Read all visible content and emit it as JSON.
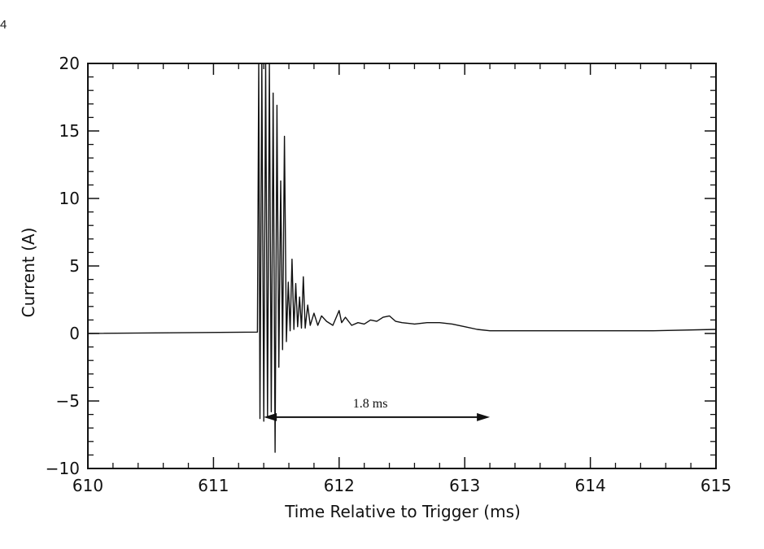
{
  "page_corner_text": "4",
  "chart_data": {
    "type": "line",
    "title": "",
    "xlabel": "Time Relative to Trigger (ms)",
    "ylabel": "Current (A)",
    "xlim": [
      610,
      615
    ],
    "ylim": [
      -10,
      20
    ],
    "xticks": [
      610,
      611,
      612,
      613,
      614,
      615
    ],
    "yticks": [
      -10,
      -5,
      0,
      5,
      10,
      15,
      20
    ],
    "x_minor_step": 0.2,
    "y_minor_step": 1,
    "grid": false,
    "legend": "none",
    "series": [
      {
        "x": [
          610.0,
          611.35,
          611.36,
          611.37,
          611.385,
          611.4,
          611.415,
          611.43,
          611.445,
          611.46,
          611.475,
          611.49,
          611.505,
          611.52,
          611.535,
          611.55,
          611.565,
          611.58,
          611.595,
          611.61,
          611.625,
          611.64,
          611.655,
          611.67,
          611.685,
          611.7,
          611.715,
          611.73,
          611.75,
          611.77,
          611.8,
          611.83,
          611.86,
          611.9,
          611.95,
          612.0,
          612.02,
          612.05,
          612.1,
          612.15,
          612.2,
          612.25,
          612.3,
          612.35,
          612.4,
          612.45,
          612.5,
          612.6,
          612.7,
          612.8,
          612.9,
          613.0,
          613.1,
          613.2,
          613.5,
          614.0,
          614.5,
          615.0
        ],
        "y": [
          0.0,
          0.1,
          20.0,
          -6.3,
          20.0,
          -6.5,
          20.0,
          -6.2,
          20.0,
          -5.8,
          17.8,
          -8.8,
          16.9,
          -2.5,
          11.3,
          -1.2,
          14.6,
          -0.6,
          3.8,
          0.2,
          5.5,
          0.3,
          3.7,
          0.5,
          2.7,
          0.4,
          4.2,
          0.4,
          2.1,
          0.6,
          1.5,
          0.6,
          1.3,
          0.9,
          0.6,
          1.7,
          0.8,
          1.2,
          0.6,
          0.8,
          0.7,
          1.0,
          0.9,
          1.2,
          1.3,
          0.9,
          0.8,
          0.7,
          0.8,
          0.8,
          0.7,
          0.5,
          0.3,
          0.2,
          0.2,
          0.2,
          0.2,
          0.3
        ]
      }
    ],
    "annotations": [
      {
        "text": "1.8 ms",
        "x_start": 611.4,
        "x_end": 613.2,
        "y": -6.2
      }
    ]
  }
}
